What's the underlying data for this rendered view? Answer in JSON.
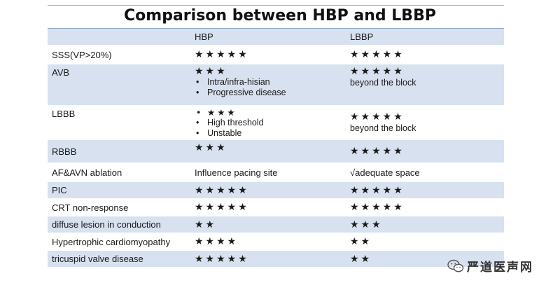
{
  "title": "Comparison between HBP and LBBP",
  "headers": [
    "",
    "HBP",
    "LBBP"
  ],
  "rows": [
    {
      "label": "SSS(VP>20%)",
      "hbp": {
        "stars": "★★★★★"
      },
      "lbbp": {
        "stars": "★★★★★"
      }
    },
    {
      "label": "AVB",
      "hbp": {
        "stars": "★★★",
        "bullets": [
          "Intra/infra-hisian",
          "Progressive disease"
        ]
      },
      "lbbp": {
        "stars": "★★★★★",
        "note": "beyond the block"
      }
    },
    {
      "label": "LBBB",
      "hbp": {
        "bullets": [
          "★★★",
          "High threshold",
          "Unstable"
        ]
      },
      "lbbp": {
        "stars": "★★★★★",
        "note": "beyond the block"
      }
    },
    {
      "label": "RBBB",
      "hbp": {
        "stars": "★★★"
      },
      "lbbp": {
        "stars": "★★★★★"
      }
    },
    {
      "label": "AF&AVN ablation",
      "hbp": {
        "text": "Influence pacing site"
      },
      "lbbp": {
        "text": "√adequate space"
      }
    },
    {
      "label": "PIC",
      "hbp": {
        "stars": "★★★★★"
      },
      "lbbp": {
        "stars": "★★★★★"
      }
    },
    {
      "label": "CRT non-response",
      "hbp": {
        "stars": "★★★★★"
      },
      "lbbp": {
        "stars": "★★★★★"
      }
    },
    {
      "label": "diffuse lesion in conduction",
      "hbp": {
        "stars": "★★"
      },
      "lbbp": {
        "stars": "★★★"
      }
    },
    {
      "label": "Hypertrophic cardiomyopathy",
      "hbp": {
        "stars": "★★★★"
      },
      "lbbp": {
        "stars": "★★"
      }
    },
    {
      "label": "tricuspid valve disease",
      "hbp": {
        "stars": "★★★★★"
      },
      "lbbp": {
        "stars": "★★"
      }
    }
  ],
  "watermark": {
    "text": "严道医声网",
    "icon": "wechat-icon"
  },
  "colors": {
    "row_shade": "#d7e1ef",
    "rule": "#8fa6c8"
  }
}
